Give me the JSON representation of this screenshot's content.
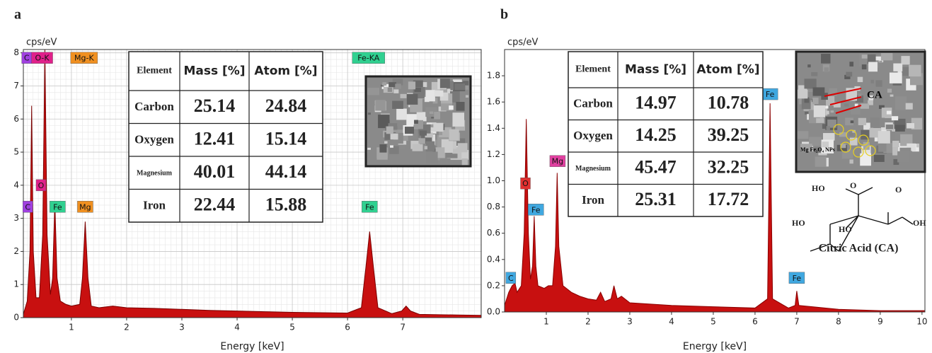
{
  "chart_data": [
    {
      "type": "area",
      "panel": "a",
      "ylabel": "cps/eV",
      "xlabel": "Energy [keV]",
      "grid": true,
      "color": "#c81010",
      "line_color": "#7a0000",
      "xlim": [
        0.13,
        8.42
      ],
      "ylim": [
        0,
        8.1
      ],
      "xticks": [
        1,
        2,
        3,
        4,
        5,
        6,
        7
      ],
      "yticks": [
        0,
        1,
        2,
        3,
        4,
        5,
        6,
        7,
        8
      ],
      "x": [
        0.13,
        0.2,
        0.25,
        0.28,
        0.31,
        0.36,
        0.42,
        0.48,
        0.52,
        0.56,
        0.62,
        0.66,
        0.7,
        0.74,
        0.8,
        0.9,
        1.0,
        1.15,
        1.2,
        1.25,
        1.3,
        1.36,
        1.5,
        1.75,
        2.0,
        2.5,
        3.0,
        3.5,
        4.0,
        4.5,
        5.0,
        5.5,
        6.0,
        6.25,
        6.33,
        6.4,
        6.47,
        6.55,
        6.8,
        6.98,
        7.06,
        7.14,
        7.3,
        8.0,
        8.42
      ],
      "values": [
        0.1,
        0.5,
        2.0,
        6.4,
        2.0,
        0.6,
        0.6,
        2.5,
        8.1,
        2.5,
        0.7,
        1.2,
        3.5,
        1.2,
        0.5,
        0.4,
        0.35,
        0.4,
        1.2,
        2.9,
        1.2,
        0.35,
        0.3,
        0.35,
        0.3,
        0.28,
        0.25,
        0.22,
        0.2,
        0.18,
        0.16,
        0.15,
        0.14,
        0.3,
        1.5,
        2.6,
        1.5,
        0.3,
        0.12,
        0.2,
        0.35,
        0.2,
        0.1,
        0.08,
        0.07
      ],
      "annotations": [
        {
          "text": "C",
          "x": 0.19,
          "y": 7.85,
          "color": "#a040e0"
        },
        {
          "text": "O-K",
          "x": 0.47,
          "y": 7.85,
          "color": "#e0208a"
        },
        {
          "text": "Mg-K",
          "x": 1.23,
          "y": 7.85,
          "color": "#f09020"
        },
        {
          "text": "Fe-KA",
          "x": 6.38,
          "y": 7.85,
          "color": "#30d090"
        },
        {
          "text": "O",
          "x": 0.45,
          "y": 4.0,
          "color": "#e0208a"
        },
        {
          "text": "C",
          "x": 0.21,
          "y": 3.35,
          "color": "#a040e0"
        },
        {
          "text": "Fe",
          "x": 0.75,
          "y": 3.35,
          "color": "#30d090"
        },
        {
          "text": "Mg",
          "x": 1.25,
          "y": 3.35,
          "color": "#f09020"
        },
        {
          "text": "Fe",
          "x": 6.4,
          "y": 3.35,
          "color": "#30d090"
        }
      ],
      "table": {
        "columns": [
          "Element",
          "Mass [%]",
          "Atom [%]"
        ],
        "rows": [
          [
            "Carbon",
            25.14,
            24.84
          ],
          [
            "Oxygen",
            12.41,
            15.14
          ],
          [
            "Magnesium",
            40.01,
            44.14
          ],
          [
            "Iron",
            22.44,
            15.88
          ]
        ]
      }
    },
    {
      "type": "area",
      "panel": "b",
      "ylabel": "cps/eV",
      "xlabel": "Energy [keV]",
      "grid": false,
      "color": "#c81010",
      "line_color": "#8a0000",
      "xlim": [
        0,
        10.07
      ],
      "ylim": [
        0,
        2
      ],
      "xticks": [
        1,
        2,
        3,
        4,
        5,
        6,
        7,
        8,
        9,
        10
      ],
      "yticks": [
        {
          "value": 0,
          "label": "0.0"
        },
        0.2,
        0.4,
        0.6,
        0.8,
        {
          "value": 1,
          "label": "1.0"
        },
        1.2,
        1.4,
        1.6,
        1.8
      ],
      "x": [
        0,
        0.1,
        0.18,
        0.25,
        0.3,
        0.4,
        0.47,
        0.52,
        0.57,
        0.62,
        0.67,
        0.71,
        0.75,
        0.8,
        0.95,
        1.05,
        1.15,
        1.22,
        1.26,
        1.3,
        1.4,
        1.6,
        1.8,
        2.0,
        2.2,
        2.3,
        2.4,
        2.55,
        2.62,
        2.7,
        2.8,
        3.0,
        3.5,
        4.0,
        5.0,
        6.0,
        6.3,
        6.36,
        6.42,
        6.8,
        6.96,
        7.0,
        7.05,
        8,
        9,
        10.07
      ],
      "values": [
        0.05,
        0.15,
        0.2,
        0.22,
        0.15,
        0.2,
        0.6,
        1.47,
        0.6,
        0.25,
        0.35,
        0.73,
        0.35,
        0.2,
        0.18,
        0.2,
        0.2,
        0.5,
        1.06,
        0.5,
        0.2,
        0.15,
        0.12,
        0.1,
        0.09,
        0.15,
        0.08,
        0.1,
        0.2,
        0.1,
        0.12,
        0.07,
        0.06,
        0.05,
        0.04,
        0.03,
        0.1,
        1.59,
        0.1,
        0.03,
        0.05,
        0.16,
        0.05,
        0.02,
        0.01,
        0.01
      ],
      "annotations": [
        {
          "text": "C",
          "x": 0.15,
          "y": 0.26,
          "color": "#40a8e0"
        },
        {
          "text": "O",
          "x": 0.5,
          "y": 0.98,
          "color": "#e03030"
        },
        {
          "text": "Fe",
          "x": 0.75,
          "y": 0.78,
          "color": "#40a8e0"
        },
        {
          "text": "Mg",
          "x": 1.27,
          "y": 1.15,
          "color": "#e040a0"
        },
        {
          "text": "Fe",
          "x": 6.36,
          "y": 1.66,
          "color": "#40a8e0"
        },
        {
          "text": "Fe",
          "x": 7.0,
          "y": 0.26,
          "color": "#40a8e0"
        }
      ],
      "table": {
        "columns": [
          "Element",
          "Mass [%]",
          "Atom [%]"
        ],
        "rows": [
          [
            "Carbon",
            14.97,
            10.78
          ],
          [
            "Oxygen",
            14.25,
            39.25
          ],
          [
            "Magnesium",
            45.47,
            32.25
          ],
          [
            "Iron",
            25.31,
            17.72
          ]
        ]
      },
      "inset_labels": [
        "CA",
        "Mg Fe₂O₄ NPs"
      ],
      "structure": {
        "labels": [
          "HO",
          "O",
          "O",
          "HO",
          "OH",
          "HO"
        ],
        "caption": "Citric Acid (CA)"
      }
    }
  ]
}
